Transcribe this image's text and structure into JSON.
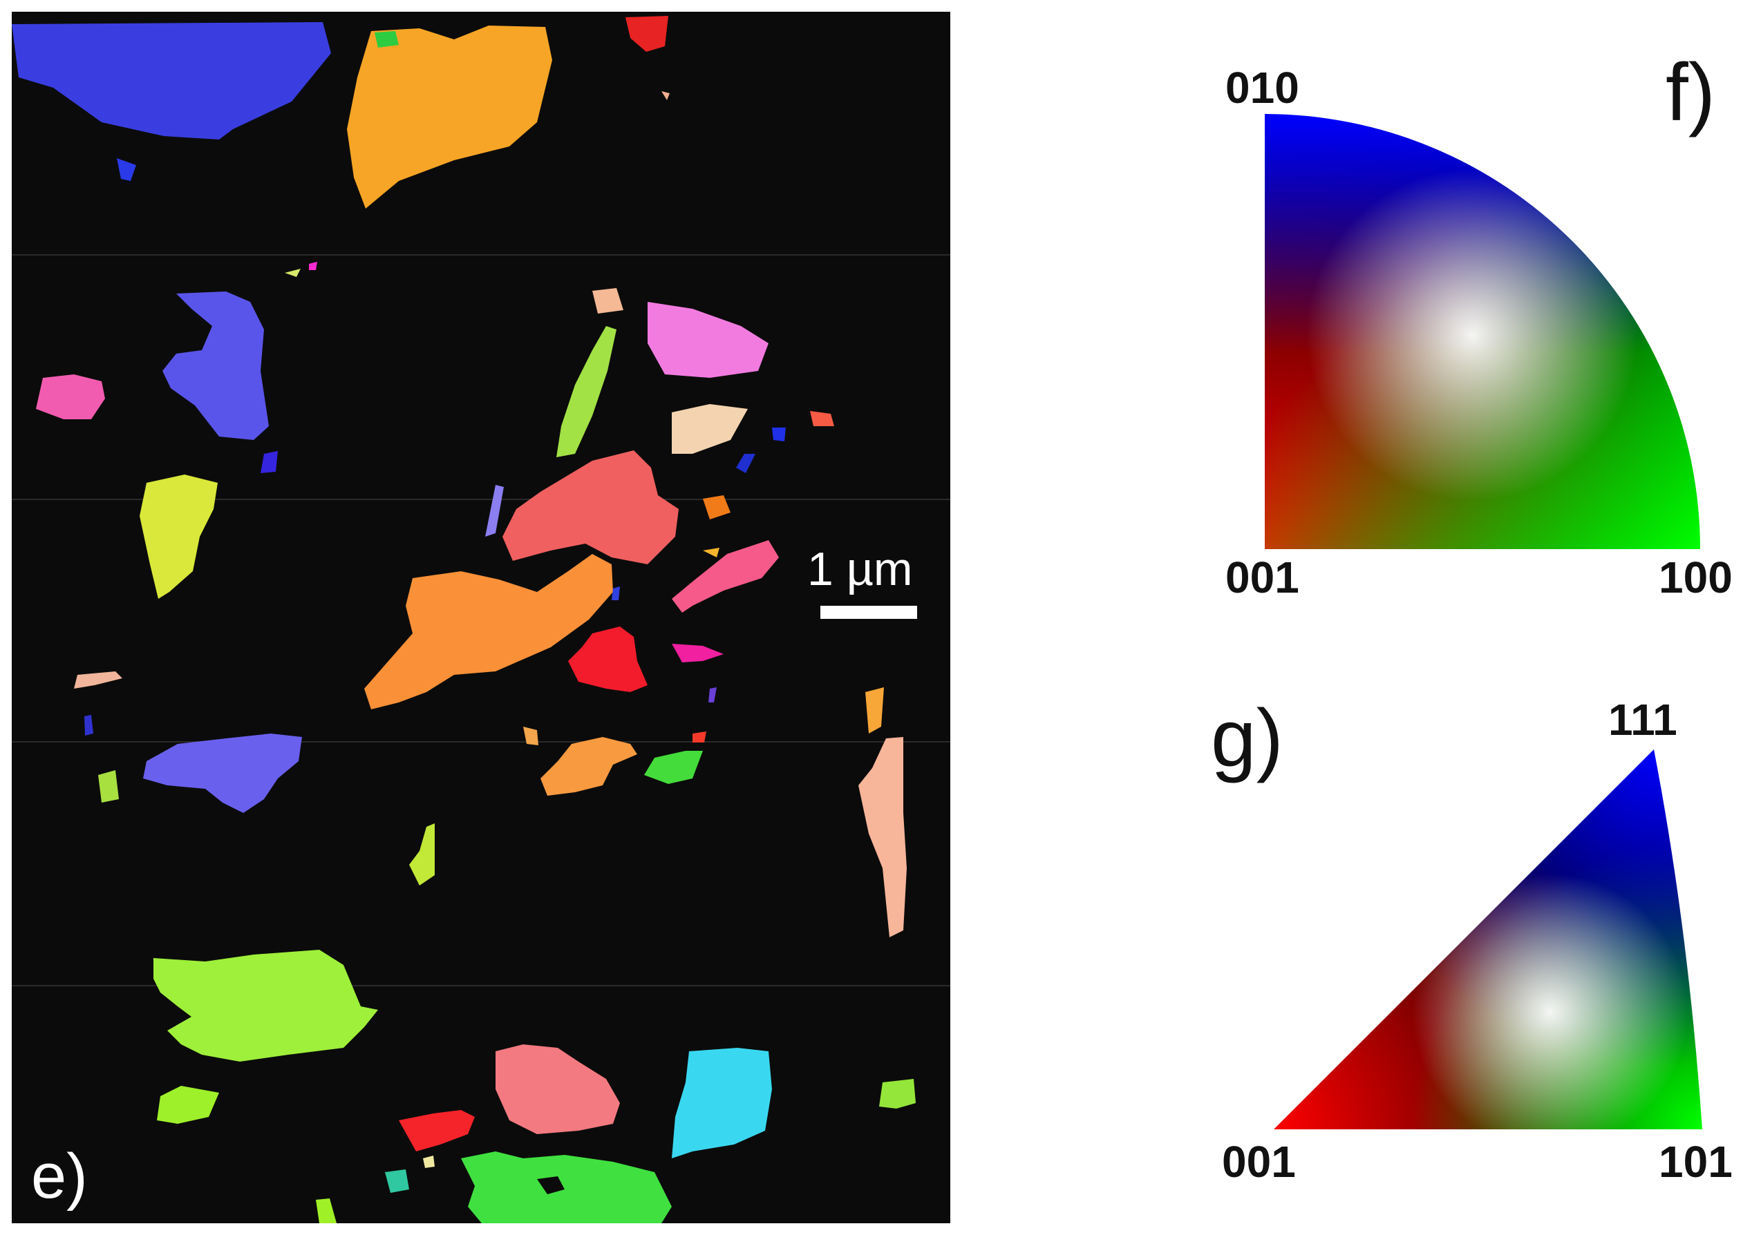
{
  "panels": {
    "e": {
      "label": "e)",
      "scale_bar": {
        "label": "1 µm"
      }
    },
    "f": {
      "label": "f)",
      "corners": {
        "top": "010",
        "bottom_left": "001",
        "bottom_right": "100"
      }
    },
    "g": {
      "label": "g)",
      "corners": {
        "top": "111",
        "bottom_left": "001",
        "bottom_right": "101"
      }
    }
  },
  "colors": {
    "map_background": "#0b0b0b",
    "ipf_red": "#ff0000",
    "ipf_green": "#00ff00",
    "ipf_blue": "#0000ff"
  }
}
